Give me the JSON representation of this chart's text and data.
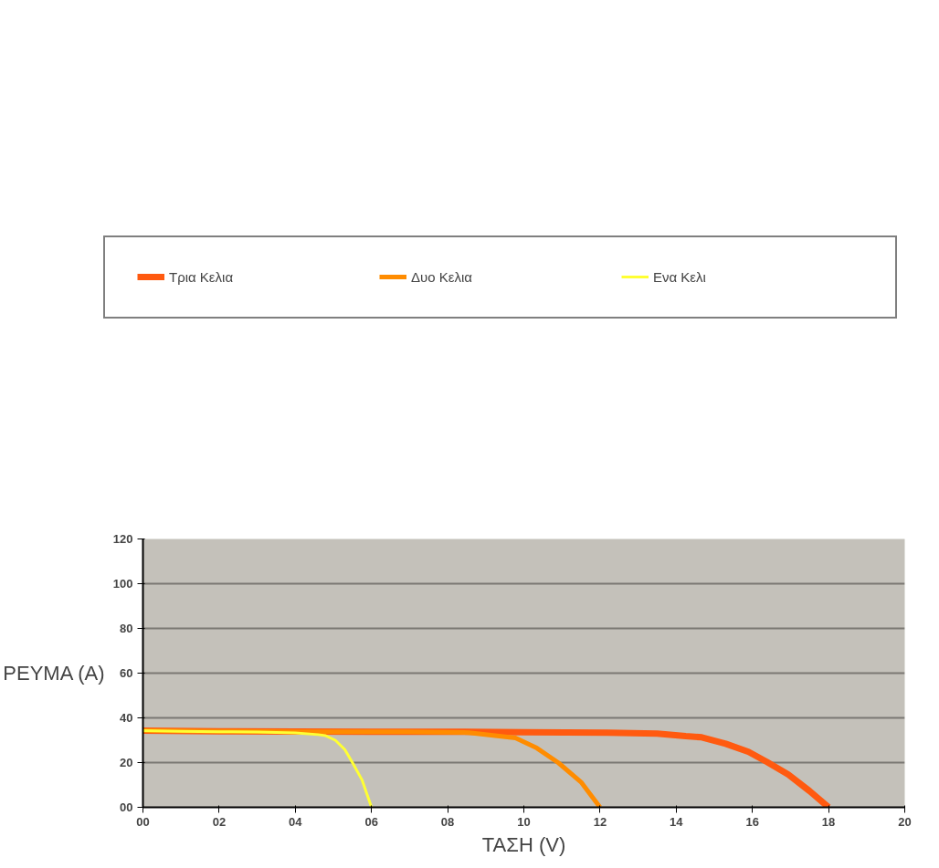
{
  "chart_data": {
    "type": "line",
    "xlabel": "ΤΑΣΗ (V)",
    "ylabel": "ΡΕΥΜΑ (Α)",
    "xlim": [
      0,
      20
    ],
    "ylim": [
      0,
      120
    ],
    "xticks": [
      {
        "value": 0,
        "label": "00"
      },
      {
        "value": 2,
        "label": "02"
      },
      {
        "value": 4,
        "label": "04"
      },
      {
        "value": 6,
        "label": "06"
      },
      {
        "value": 8,
        "label": "08"
      },
      10,
      12,
      14,
      16,
      18,
      20
    ],
    "yticks": [
      {
        "value": 0,
        "label": "00"
      },
      20,
      40,
      60,
      80,
      100,
      120
    ],
    "grid": "y",
    "legend": "top",
    "marker": "none",
    "line_style": "solid",
    "series": [
      {
        "name": "Τρια Κελια",
        "color": "#ff5a10",
        "x": [
          0,
          2,
          4,
          6,
          8,
          10,
          12.2,
          13.5,
          14.25,
          14.67,
          15.3,
          15.9,
          16.38,
          16.94,
          17.5,
          18.0
        ],
        "values": [
          34.3,
          34,
          33.9,
          33.8,
          33.8,
          33.6,
          33.4,
          33,
          31.8,
          31.3,
          28.4,
          24.8,
          20.3,
          14.7,
          7.3,
          0
        ]
      },
      {
        "name": "Δυο Κελια",
        "color": "#ff8c00",
        "x": [
          0,
          2,
          4,
          6,
          6.92,
          8.56,
          9.78,
          10.34,
          10.9,
          11.5,
          12.0
        ],
        "values": [
          34.3,
          34,
          33.8,
          33.8,
          33.8,
          33.4,
          31,
          26.5,
          20,
          11.3,
          0
        ]
      },
      {
        "name": "Ενα Κελι",
        "color": "#ffff33",
        "x": [
          0,
          1,
          2,
          3,
          4,
          4.6,
          4.8,
          5.05,
          5.3,
          5.5,
          5.75,
          6.0
        ],
        "values": [
          34.3,
          34,
          33.8,
          33.7,
          33.3,
          32.5,
          32,
          30,
          25.8,
          20,
          12.3,
          0
        ]
      }
    ]
  }
}
